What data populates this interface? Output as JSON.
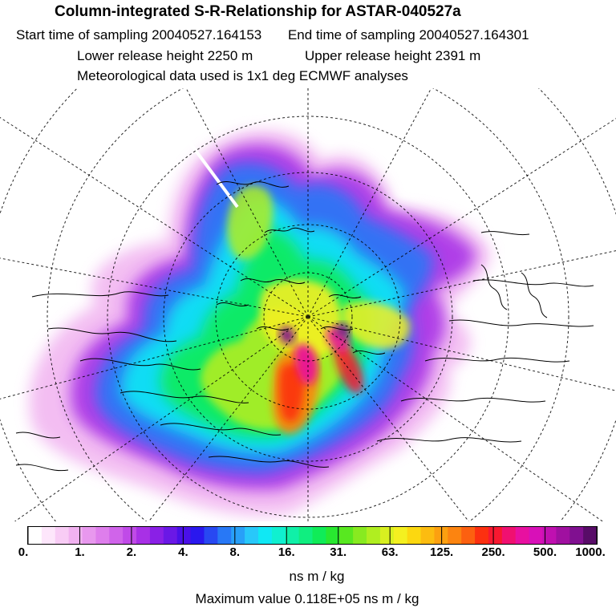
{
  "header": {
    "title": "Column-integrated S-R-Relationship for ASTAR-040527a",
    "start_label": "Start time of sampling",
    "start_value": "20040527.164153",
    "end_label": "End time of sampling",
    "end_value": "20040527.164301",
    "lower_label": "Lower release height",
    "lower_value": "2250 m",
    "upper_label": "Upper release height",
    "upper_value": "2391 m",
    "met_text": "Meteorological data used is 1x1 deg ECMWF analyses"
  },
  "map": {
    "projection": "polar-stereographic"
  },
  "colorbar": {
    "tick_labels": [
      "0.",
      "1.",
      "2.",
      "4.",
      "8.",
      "16.",
      "31.",
      "63.",
      "125.",
      "250.",
      "500.",
      "1000."
    ],
    "colors": [
      "#ffffff",
      "#fde6fb",
      "#f8ccf5",
      "#f1b2f0",
      "#e898ee",
      "#de7eec",
      "#d064ea",
      "#c04ae8",
      "#a830e6",
      "#8a20e6",
      "#6a18e6",
      "#4a10e8",
      "#2a18ee",
      "#2848f2",
      "#2878f6",
      "#28a0f8",
      "#28c8fa",
      "#10e8f4",
      "#10f0d0",
      "#10f0a8",
      "#10ee80",
      "#10ec58",
      "#28e830",
      "#58e820",
      "#88ea20",
      "#b0ee20",
      "#d8f020",
      "#f4f020",
      "#fcd810",
      "#fcbc10",
      "#fca010",
      "#fc8410",
      "#fc6010",
      "#fc3010",
      "#f81830",
      "#f01070",
      "#e810a0",
      "#d810b8",
      "#c010b0",
      "#a010a0",
      "#801090",
      "#580c68"
    ]
  },
  "units": "ns m / kg",
  "max_label": "Maximum value",
  "max_value": "0.118E+05 ns m / kg"
}
